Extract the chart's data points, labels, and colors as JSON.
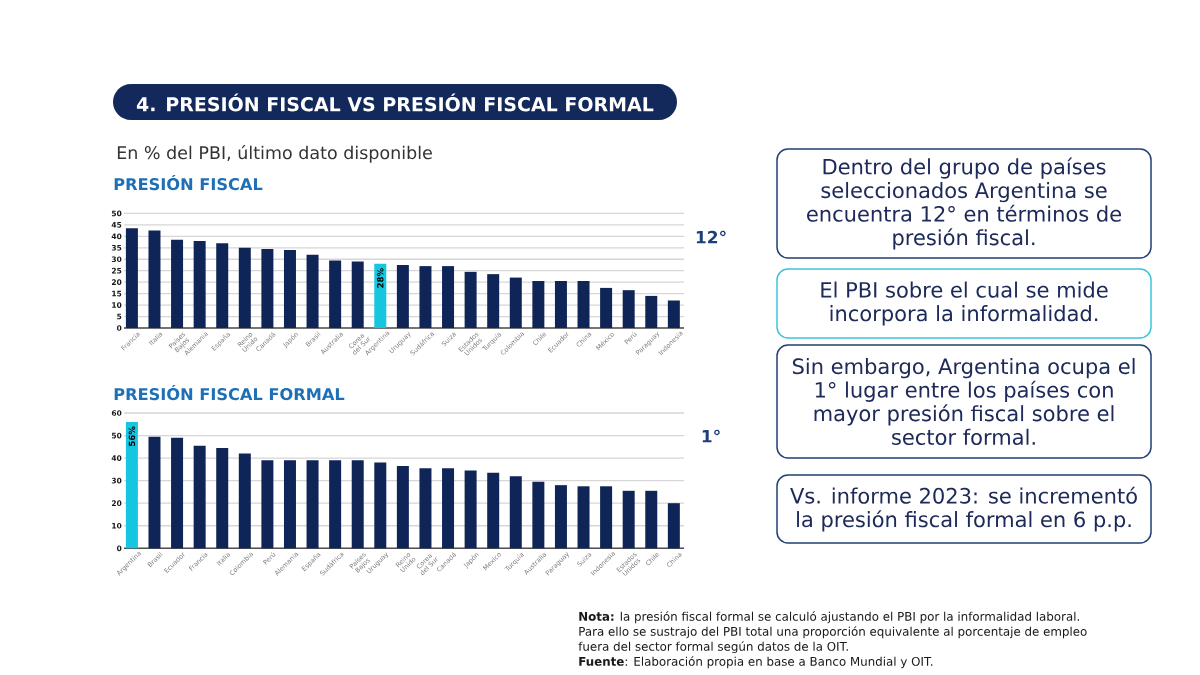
{
  "chart_data": [
    {
      "type": "other",
      "title": "4. PRESIÓN FISCAL VS PRESIÓN FISCAL FORMAL",
      "subtitle": "En % del PBI, último dato disponible"
    },
    {
      "type": "bar",
      "title": "PRESIÓN FISCAL",
      "categories": [
        "Francia",
        "Italia",
        "Países Bajos",
        "Alemania",
        "España",
        "Reino Unido",
        "Canadá",
        "Japón",
        "Brasil",
        "Australia",
        "Corea del Sur",
        "Argentina",
        "Uruguay",
        "Sudáfrica",
        "Suiza",
        "Estados Unidos",
        "Turquía",
        "Colombia",
        "Chile",
        "Ecuador",
        "China",
        "México",
        "Perú",
        "Paraguay",
        "Indonesia"
      ],
      "values": [
        43.5,
        42.5,
        38.5,
        38,
        37,
        35,
        34.5,
        34,
        32,
        29.5,
        29,
        28,
        27.5,
        27,
        27,
        24.5,
        23.5,
        22,
        20.5,
        20.5,
        20.5,
        17.5,
        16.5,
        14,
        12
      ],
      "colors": [
        "#0f2557",
        "#0f2557",
        "#0f2557",
        "#0f2557",
        "#0f2557",
        "#0f2557",
        "#0f2557",
        "#0f2557",
        "#0f2557",
        "#0f2557",
        "#0f2557",
        "#16c5e0",
        "#0f2557",
        "#0f2557",
        "#0f2557",
        "#0f2557",
        "#0f2557",
        "#0f2557",
        "#0f2557",
        "#0f2557",
        "#0f2557",
        "#0f2557",
        "#0f2557",
        "#0f2557",
        "#0f2557"
      ],
      "value_labels": [
        null,
        null,
        null,
        null,
        null,
        null,
        null,
        null,
        null,
        null,
        null,
        "28%",
        null,
        null,
        null,
        null,
        null,
        null,
        null,
        null,
        null,
        null,
        null,
        null,
        null
      ],
      "ylim": [
        0,
        50
      ],
      "yticks": [
        0,
        5,
        10,
        15,
        20,
        25,
        30,
        35,
        40,
        45,
        50
      ],
      "grid": "y",
      "annotations": [
        "12°"
      ]
    },
    {
      "type": "bar",
      "title": "PRESIÓN FISCAL FORMAL",
      "categories": [
        "Argentina",
        "Brasil",
        "Ecuador",
        "Francia",
        "Italia",
        "Colombia",
        "Perú",
        "Alemania",
        "España",
        "Sudáfrica",
        "Países Bajos",
        "Uruguay",
        "Reino Unido",
        "Corea del Sur",
        "Canadá",
        "Japón",
        "Mexico",
        "Turquía",
        "Australia",
        "Paraguay",
        "Suiza",
        "Indonesia",
        "Estados Unidos",
        "Chile",
        "China"
      ],
      "values": [
        56,
        49.5,
        49,
        45.5,
        44.5,
        42,
        39,
        39,
        39,
        39,
        39,
        38,
        36.5,
        35.5,
        35.5,
        34.5,
        33.5,
        32,
        29.5,
        28,
        27.5,
        27.5,
        25.5,
        25.5,
        20
      ],
      "colors": [
        "#16c5e0",
        "#0f2557",
        "#0f2557",
        "#0f2557",
        "#0f2557",
        "#0f2557",
        "#0f2557",
        "#0f2557",
        "#0f2557",
        "#0f2557",
        "#0f2557",
        "#0f2557",
        "#0f2557",
        "#0f2557",
        "#0f2557",
        "#0f2557",
        "#0f2557",
        "#0f2557",
        "#0f2557",
        "#0f2557",
        "#0f2557",
        "#0f2557",
        "#0f2557",
        "#0f2557",
        "#0f2557"
      ],
      "value_labels": [
        "56%",
        null,
        null,
        null,
        null,
        null,
        null,
        null,
        null,
        null,
        null,
        null,
        null,
        null,
        null,
        null,
        null,
        null,
        null,
        null,
        null,
        null,
        null,
        null,
        null
      ],
      "ylim": [
        0,
        60
      ],
      "yticks": [
        0,
        10,
        20,
        30,
        40,
        50,
        60
      ],
      "grid": "y",
      "annotations": [
        "1°"
      ]
    },
    {
      "type": "other",
      "annotations": [
        "Dentro del grupo de países seleccionados Argentina se encuentra 12° en términos de presión fiscal.",
        "El PBI sobre el cual se mide incorpora la informalidad.",
        "Sin embargo, Argentina ocupa el 1° lugar entre los países con mayor presión fiscal sobre el sector formal.",
        "Vs. informe 2023: se incrementó la presión fiscal formal en 6 p.p."
      ]
    },
    {
      "type": "other",
      "annotations": [
        "**Nota:** la presión fiscal formal se calculó ajustando el PBI por la informalidad laboral. Para ello se sustrajo del PBI total una proporción equivalente al porcentaje de empleo fuera del sector formal según datos de la OIT.",
        "**Fuente**: Elaboración propia en base a Banco Mundial y OIT."
      ]
    }
  ]
}
